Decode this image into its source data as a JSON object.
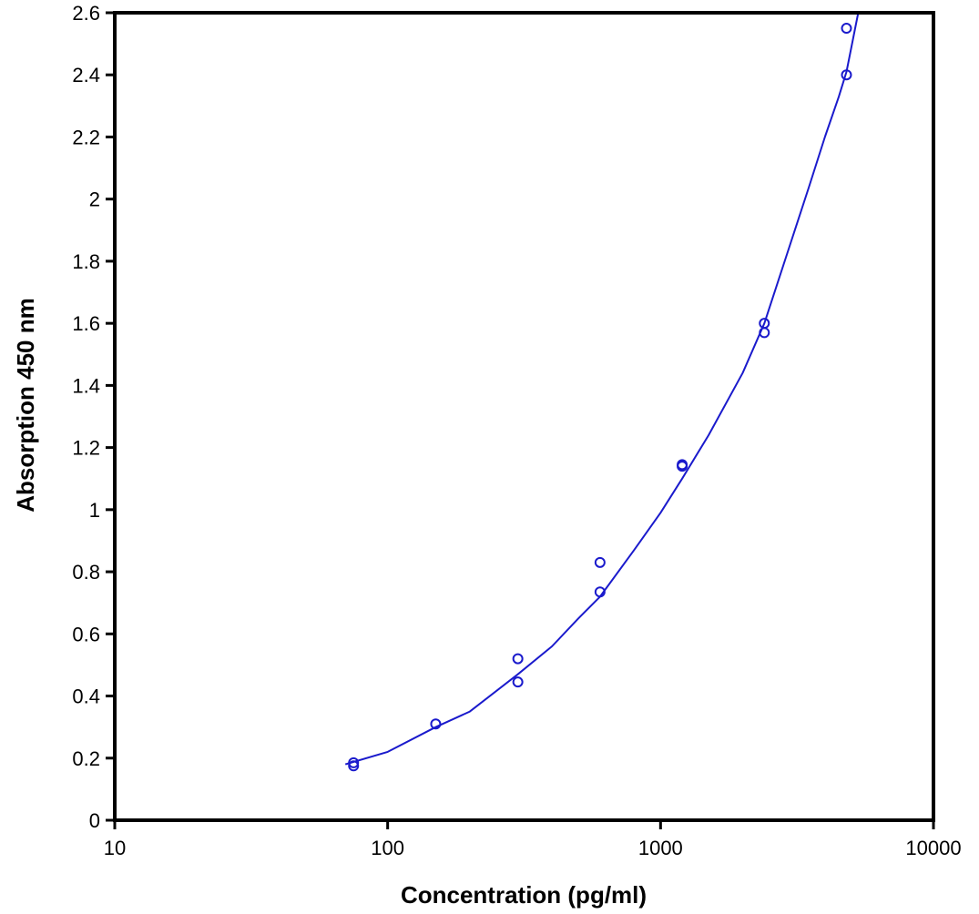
{
  "chart_data": {
    "type": "scatter",
    "title": "",
    "xlabel": "Concentration (pg/ml)",
    "ylabel": "Absorption 450 nm",
    "x_scale": "log",
    "xlim": [
      10,
      10000
    ],
    "ylim": [
      0,
      2.6
    ],
    "x_ticks": [
      10,
      100,
      1000,
      10000
    ],
    "x_tick_labels": [
      "10",
      "100",
      "1000",
      "10000"
    ],
    "y_ticks": [
      0,
      0.2,
      0.4,
      0.6,
      0.8,
      1,
      1.2,
      1.4,
      1.6,
      1.8,
      2,
      2.2,
      2.4,
      2.6
    ],
    "y_tick_labels": [
      "0",
      "0.2",
      "0.4",
      "0.6",
      "0.8",
      "1",
      "1.2",
      "1.4",
      "1.6",
      "1.8",
      "2",
      "2.2",
      "2.4",
      "2.6"
    ],
    "grid": false,
    "legend": "none",
    "color": "#1a1acc",
    "points": [
      {
        "x": 75,
        "y": 0.185
      },
      {
        "x": 75,
        "y": 0.175
      },
      {
        "x": 150,
        "y": 0.31
      },
      {
        "x": 300,
        "y": 0.52
      },
      {
        "x": 300,
        "y": 0.445
      },
      {
        "x": 600,
        "y": 0.83
      },
      {
        "x": 600,
        "y": 0.735
      },
      {
        "x": 1200,
        "y": 1.145
      },
      {
        "x": 1200,
        "y": 1.14
      },
      {
        "x": 2400,
        "y": 1.6
      },
      {
        "x": 2400,
        "y": 1.57
      },
      {
        "x": 4800,
        "y": 2.55
      },
      {
        "x": 4800,
        "y": 2.4
      }
    ],
    "fit_curve": {
      "x": [
        70,
        100,
        150,
        200,
        300,
        400,
        500,
        600,
        800,
        1000,
        1200,
        1500,
        2000,
        2400,
        3000,
        3500,
        4000,
        4500,
        4800,
        5300
      ],
      "y": [
        0.18,
        0.22,
        0.3,
        0.35,
        0.47,
        0.56,
        0.65,
        0.72,
        0.87,
        0.99,
        1.1,
        1.24,
        1.44,
        1.6,
        1.86,
        2.04,
        2.2,
        2.33,
        2.41,
        2.6
      ]
    }
  }
}
